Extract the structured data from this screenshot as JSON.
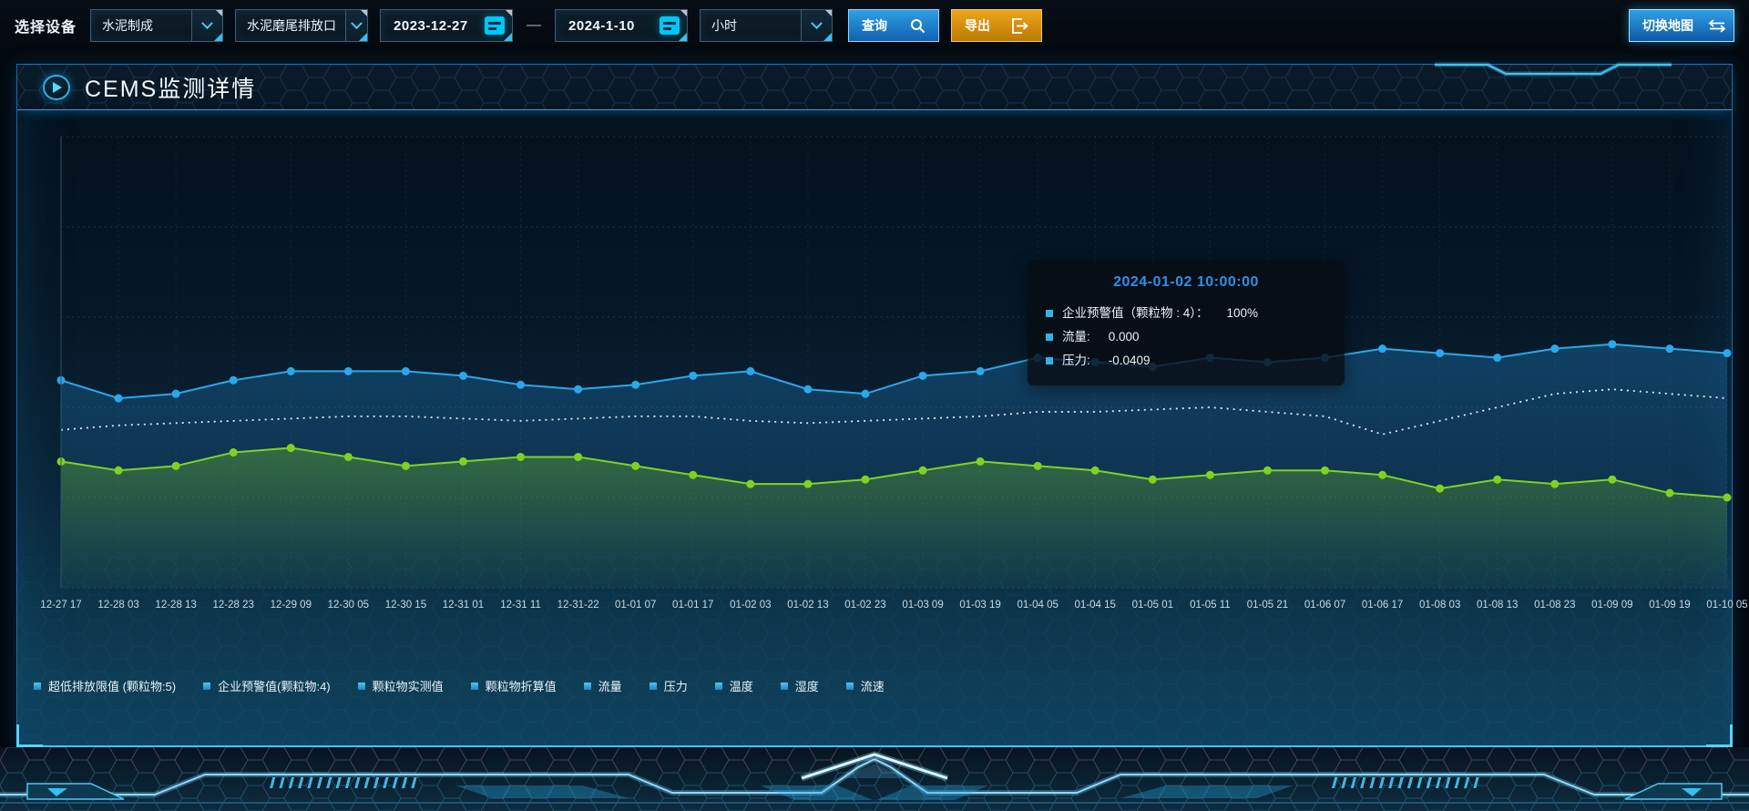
{
  "toolbar": {
    "device_label": "选择设备",
    "device_select": "水泥制成",
    "outlet_select": "水泥磨尾排放口",
    "date_from": "2023-12-27",
    "date_separator": "—",
    "date_to": "2024-1-10",
    "interval_select": "小时",
    "query_button": "查询",
    "export_button": "导出",
    "switch_map_button": "切换地图"
  },
  "panel": {
    "title": "CEMS监测详情"
  },
  "tooltip": {
    "title": "2024-01-02 10:00:00",
    "rows": [
      {
        "label": "企业预警值（颗粒物 : 4）：",
        "value": "100%"
      },
      {
        "label": "流量:",
        "value": "0.000"
      },
      {
        "label": "压力:",
        "value": "-0.0409"
      }
    ]
  },
  "legend": [
    "超低排放限值 (颗粒物:5)",
    "企业预警值(颗粒物:4)",
    "颗粒物实测值",
    "颗粒物折算值",
    "流量",
    "压力",
    "温度",
    "湿度",
    "流速"
  ],
  "colors": {
    "accent_cyan": "#35c0f0",
    "query_blue": "#1e88d4",
    "export_orange": "#d98f0c",
    "tooltip_title_blue": "#2f8fe8",
    "line_blue": "#2ba7ee",
    "line_green": "#7ed321",
    "line_white": "#dfeaf2"
  },
  "chart_data": {
    "type": "line",
    "title": "",
    "xlabel": "",
    "ylabel": "",
    "ylim": [
      0,
      100
    ],
    "grid": true,
    "y_axis_labels_visible": false,
    "legend_position": "bottom",
    "categories": [
      "12-27 17",
      "12-28 03",
      "12-28 13",
      "12-28 23",
      "12-29 09",
      "12-30 05",
      "12-30 15",
      "12-31 01",
      "12-31 11",
      "12-31-22",
      "01-01 07",
      "01-01 17",
      "01-02 03",
      "01-02 13",
      "01-02 23",
      "01-03 09",
      "01-03 19",
      "01-04 05",
      "01-04 15",
      "01-05 01",
      "01-05 11",
      "01-05 21",
      "01-06 07",
      "01-06 17",
      "01-08 03",
      "01-08 13",
      "01-08 23",
      "01-09 09",
      "01-09 19",
      "01-10 05"
    ],
    "series": [
      {
        "name": "line-blue-solid-markers",
        "color": "#2ba7ee",
        "style": "solid",
        "markers": true,
        "area": true,
        "values": [
          46,
          42,
          43,
          46,
          48,
          48,
          48,
          47,
          45,
          44,
          45,
          47,
          48,
          44,
          43,
          47,
          48,
          51,
          50,
          49,
          51,
          50,
          51,
          53,
          52,
          51,
          53,
          54,
          53,
          52
        ]
      },
      {
        "name": "line-white-dotted",
        "color": "#dfeaf2",
        "style": "dotted",
        "markers": false,
        "area": false,
        "values": [
          35,
          36,
          36.5,
          37,
          37.5,
          38,
          38,
          37.5,
          37,
          37.5,
          38,
          38,
          37,
          36.5,
          37,
          37.5,
          38,
          39,
          39,
          39.5,
          40,
          39,
          38,
          34,
          37,
          40,
          43,
          44,
          43,
          42
        ]
      },
      {
        "name": "line-green-solid-markers",
        "color": "#7ed321",
        "style": "solid",
        "markers": true,
        "area": true,
        "values": [
          28,
          26,
          27,
          30,
          31,
          29,
          27,
          28,
          29,
          29,
          27,
          25,
          23,
          23,
          24,
          26,
          28,
          27,
          26,
          24,
          25,
          26,
          26,
          25,
          22,
          24,
          23,
          24,
          21,
          20
        ]
      }
    ]
  }
}
